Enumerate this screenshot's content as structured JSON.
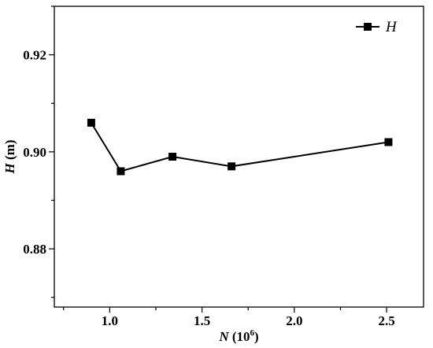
{
  "chart_data": {
    "type": "line",
    "title": "",
    "xlabel": {
      "symbol": "N",
      "unit_prefix": " (10",
      "unit_exp": "6",
      "unit_suffix": ")"
    },
    "ylabel": {
      "symbol": "H",
      "unit": " (m)"
    },
    "xlim": [
      0.7,
      2.7
    ],
    "ylim": [
      0.868,
      0.93
    ],
    "xticks": [
      1.0,
      1.5,
      2.0,
      2.5
    ],
    "xtick_labels": [
      "1.0",
      "1.5",
      "2.0",
      "2.5"
    ],
    "yticks": [
      0.88,
      0.9,
      0.92
    ],
    "ytick_labels": [
      "0.88",
      "0.90",
      "0.92"
    ],
    "grid": false,
    "legend_position": "top-right",
    "series": [
      {
        "name": "H",
        "color": "#000000",
        "marker": "square",
        "x": [
          0.9,
          1.06,
          1.34,
          1.66,
          2.51
        ],
        "y": [
          0.906,
          0.896,
          0.899,
          0.897,
          0.902
        ]
      }
    ]
  }
}
